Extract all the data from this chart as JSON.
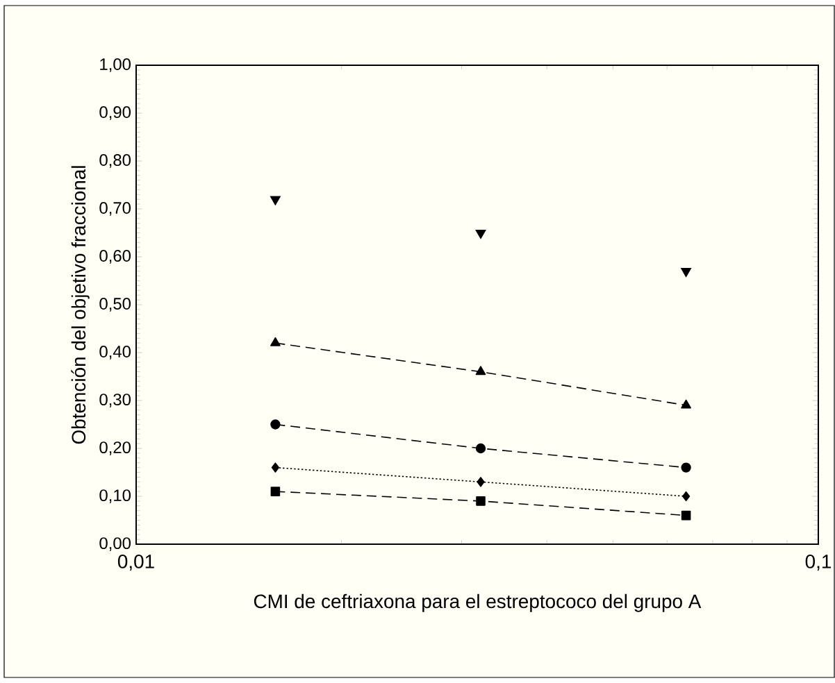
{
  "chart_data": {
    "type": "line",
    "xlabel": "CMI de ceftriaxona para el estreptococo del grupo A",
    "ylabel": "Obtención del objetivo fraccional",
    "x": [
      0.016,
      0.032,
      0.064
    ],
    "log": "x",
    "xlim": [
      0.01,
      0.1
    ],
    "xticks": [
      {
        "value": 0.01,
        "label": "0,01"
      },
      {
        "value": 0.1,
        "label": "0,1"
      }
    ],
    "ylim": [
      0,
      1
    ],
    "yticks": [
      {
        "value": 0,
        "label": "0,00"
      },
      {
        "value": 0.1,
        "label": "0,10"
      },
      {
        "value": 0.2,
        "label": "0,20"
      },
      {
        "value": 0.3,
        "label": "0,30"
      },
      {
        "value": 0.4,
        "label": "0,40"
      },
      {
        "value": 0.5,
        "label": "0,50"
      },
      {
        "value": 0.6,
        "label": "0,60"
      },
      {
        "value": 0.7,
        "label": "0,70"
      },
      {
        "value": 0.8,
        "label": "0,80"
      },
      {
        "value": 0.9,
        "label": "0,90"
      },
      {
        "value": 1,
        "label": "1,00"
      }
    ],
    "grid": false,
    "series": [
      {
        "type": "scatter",
        "color": "#000000",
        "marker": "triangle-down",
        "values": [
          0.72,
          0.65,
          0.57
        ]
      },
      {
        "color": "#000000",
        "marker": "triangle",
        "line_style": "dashed",
        "values": [
          0.42,
          0.36,
          0.29
        ]
      },
      {
        "color": "#000000",
        "marker": "circle",
        "line_style": "dashed",
        "values": [
          0.25,
          0.2,
          0.16
        ]
      },
      {
        "color": "#000000",
        "marker": "diamond",
        "line_style": "dotted",
        "values": [
          0.16,
          0.13,
          0.1
        ]
      },
      {
        "color": "#000000",
        "marker": "square",
        "line_style": "dashed",
        "values": [
          0.11,
          0.09,
          0.06
        ]
      }
    ]
  }
}
